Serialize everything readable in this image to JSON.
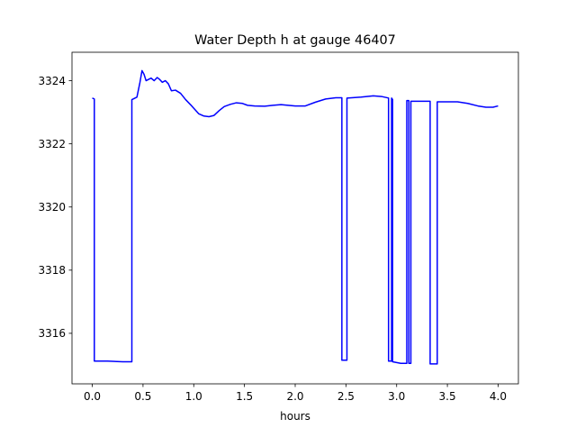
{
  "chart_data": {
    "type": "line",
    "title": "Water Depth h at gauge 46407",
    "xlabel": "hours",
    "ylabel": "",
    "xlim": [
      -0.2,
      4.2
    ],
    "ylim": [
      3314.4,
      3324.9
    ],
    "x_ticks": [
      0.0,
      0.5,
      1.0,
      1.5,
      2.0,
      2.5,
      3.0,
      3.5,
      4.0
    ],
    "x_tick_labels": [
      "0.0",
      "0.5",
      "1.0",
      "1.5",
      "2.0",
      "2.5",
      "3.0",
      "3.5",
      "4.0"
    ],
    "y_ticks": [
      3316,
      3318,
      3320,
      3322,
      3324
    ],
    "y_tick_labels": [
      "3316",
      "3318",
      "3320",
      "3322",
      "3324"
    ],
    "grid": false,
    "legend": "none",
    "series": [
      {
        "color": "#0000ff",
        "points": [
          [
            0.0,
            3323.45
          ],
          [
            0.02,
            3323.42
          ],
          [
            0.02,
            3315.12
          ],
          [
            0.15,
            3315.12
          ],
          [
            0.3,
            3315.1
          ],
          [
            0.39,
            3315.1
          ],
          [
            0.39,
            3323.4
          ],
          [
            0.44,
            3323.48
          ],
          [
            0.47,
            3323.95
          ],
          [
            0.49,
            3324.32
          ],
          [
            0.51,
            3324.2
          ],
          [
            0.53,
            3324.0
          ],
          [
            0.56,
            3324.05
          ],
          [
            0.58,
            3324.08
          ],
          [
            0.61,
            3324.0
          ],
          [
            0.64,
            3324.1
          ],
          [
            0.66,
            3324.05
          ],
          [
            0.69,
            3323.95
          ],
          [
            0.72,
            3324.0
          ],
          [
            0.75,
            3323.9
          ],
          [
            0.78,
            3323.68
          ],
          [
            0.82,
            3323.7
          ],
          [
            0.87,
            3323.6
          ],
          [
            0.92,
            3323.4
          ],
          [
            0.98,
            3323.2
          ],
          [
            1.05,
            3322.95
          ],
          [
            1.1,
            3322.88
          ],
          [
            1.15,
            3322.86
          ],
          [
            1.2,
            3322.9
          ],
          [
            1.25,
            3323.05
          ],
          [
            1.3,
            3323.18
          ],
          [
            1.36,
            3323.25
          ],
          [
            1.42,
            3323.3
          ],
          [
            1.48,
            3323.28
          ],
          [
            1.53,
            3323.22
          ],
          [
            1.6,
            3323.2
          ],
          [
            1.7,
            3323.19
          ],
          [
            1.78,
            3323.22
          ],
          [
            1.86,
            3323.24
          ],
          [
            1.93,
            3323.22
          ],
          [
            2.0,
            3323.2
          ],
          [
            2.1,
            3323.2
          ],
          [
            2.2,
            3323.32
          ],
          [
            2.3,
            3323.42
          ],
          [
            2.4,
            3323.46
          ],
          [
            2.46,
            3323.46
          ],
          [
            2.46,
            3315.15
          ],
          [
            2.51,
            3315.15
          ],
          [
            2.51,
            3323.45
          ],
          [
            2.65,
            3323.48
          ],
          [
            2.77,
            3323.52
          ],
          [
            2.85,
            3323.5
          ],
          [
            2.92,
            3323.45
          ],
          [
            2.92,
            3315.12
          ],
          [
            2.95,
            3315.12
          ],
          [
            2.95,
            3323.45
          ],
          [
            2.96,
            3323.4
          ],
          [
            2.96,
            3315.1
          ],
          [
            3.04,
            3315.05
          ],
          [
            3.1,
            3315.05
          ],
          [
            3.1,
            3323.37
          ],
          [
            3.12,
            3323.37
          ],
          [
            3.12,
            3315.05
          ],
          [
            3.14,
            3315.05
          ],
          [
            3.14,
            3323.35
          ],
          [
            3.25,
            3323.35
          ],
          [
            3.33,
            3323.35
          ],
          [
            3.33,
            3315.03
          ],
          [
            3.4,
            3315.03
          ],
          [
            3.4,
            3323.33
          ],
          [
            3.5,
            3323.33
          ],
          [
            3.6,
            3323.33
          ],
          [
            3.7,
            3323.28
          ],
          [
            3.8,
            3323.2
          ],
          [
            3.88,
            3323.16
          ],
          [
            3.95,
            3323.16
          ],
          [
            4.0,
            3323.2
          ]
        ]
      }
    ]
  }
}
